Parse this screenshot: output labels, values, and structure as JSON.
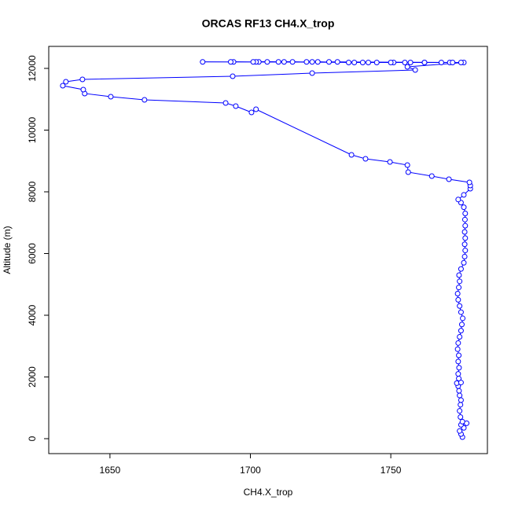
{
  "chart_data": {
    "type": "line",
    "title": "ORCAS RF13 CH4.X_trop",
    "x_label": "CH4.X_trop",
    "y_label": "Altitude (m)",
    "color": "#0000ff",
    "markers": true,
    "xlim": [
      1628.2,
      1784.4
    ],
    "ylim": [
      -484,
      12713
    ],
    "xticks": [
      1650,
      1700,
      1750
    ],
    "yticks": [
      0,
      2000,
      4000,
      6000,
      8000,
      10000,
      12000
    ],
    "x": [
      1775.5,
      1775,
      1774.5,
      1776,
      1775,
      1777,
      1775.5,
      1774.8,
      1774.5,
      1774.8,
      1775,
      1774.5,
      1774.3,
      1774,
      1773.5,
      1775,
      1774.2,
      1774,
      1774.3,
      1774,
      1774.2,
      1773.8,
      1774,
      1774.5,
      1775,
      1775.3,
      1775.6,
      1775,
      1774.5,
      1774,
      1773.8,
      1774.2,
      1774.5,
      1774.3,
      1775,
      1776,
      1776.3,
      1776.5,
      1776.3,
      1776.5,
      1776.3,
      1776.5,
      1776.4,
      1776.5,
      1776,
      1775,
      1774,
      1776,
      1778.3,
      1778.3,
      1778,
      1770.7,
      1764.6,
      1756.2,
      1755.9,
      1749.7,
      1741,
      1736,
      1702,
      1700.4,
      1694.8,
      1691.2,
      1662.3,
      1650.3,
      1641,
      1640.5,
      1633.2,
      1634.3,
      1640.2,
      1693.7,
      1722,
      1758.7,
      1755.9,
      1776,
      1683,
      1771,
      1694,
      1762,
      1703,
      1751,
      1715,
      1742,
      1728,
      1775,
      1693,
      1768,
      1702,
      1757,
      1712,
      1745,
      1722,
      1737,
      1731,
      1755,
      1701,
      1772,
      1710,
      1740,
      1724,
      1750,
      1706,
      1762,
      1720,
      1735
    ],
    "y": [
      50,
      150,
      250,
      350,
      450,
      500,
      550,
      700,
      900,
      1100,
      1250,
      1400,
      1550,
      1700,
      1800,
      1820,
      1950,
      2100,
      2300,
      2500,
      2700,
      2900,
      3100,
      3300,
      3500,
      3700,
      3900,
      4100,
      4300,
      4500,
      4700,
      4900,
      5100,
      5300,
      5500,
      5700,
      5900,
      6100,
      6300,
      6500,
      6700,
      6900,
      7100,
      7300,
      7500,
      7650,
      7750,
      7900,
      8102,
      8204,
      8306,
      8408,
      8510,
      8637,
      8866,
      8968,
      9070,
      9197,
      10675,
      10573,
      10777,
      10879,
      10981,
      11083,
      11185,
      11312,
      11439,
      11567,
      11643,
      11745,
      11847,
      11949,
      12051,
      12190,
      12210,
      12190,
      12210,
      12190,
      12210,
      12190,
      12210,
      12190,
      12210,
      12190,
      12210,
      12190,
      12210,
      12190,
      12210,
      12190,
      12210,
      12190,
      12210,
      12190,
      12210,
      12190,
      12210,
      12190,
      12210,
      12190,
      12210,
      12190,
      12210,
      12190
    ]
  }
}
